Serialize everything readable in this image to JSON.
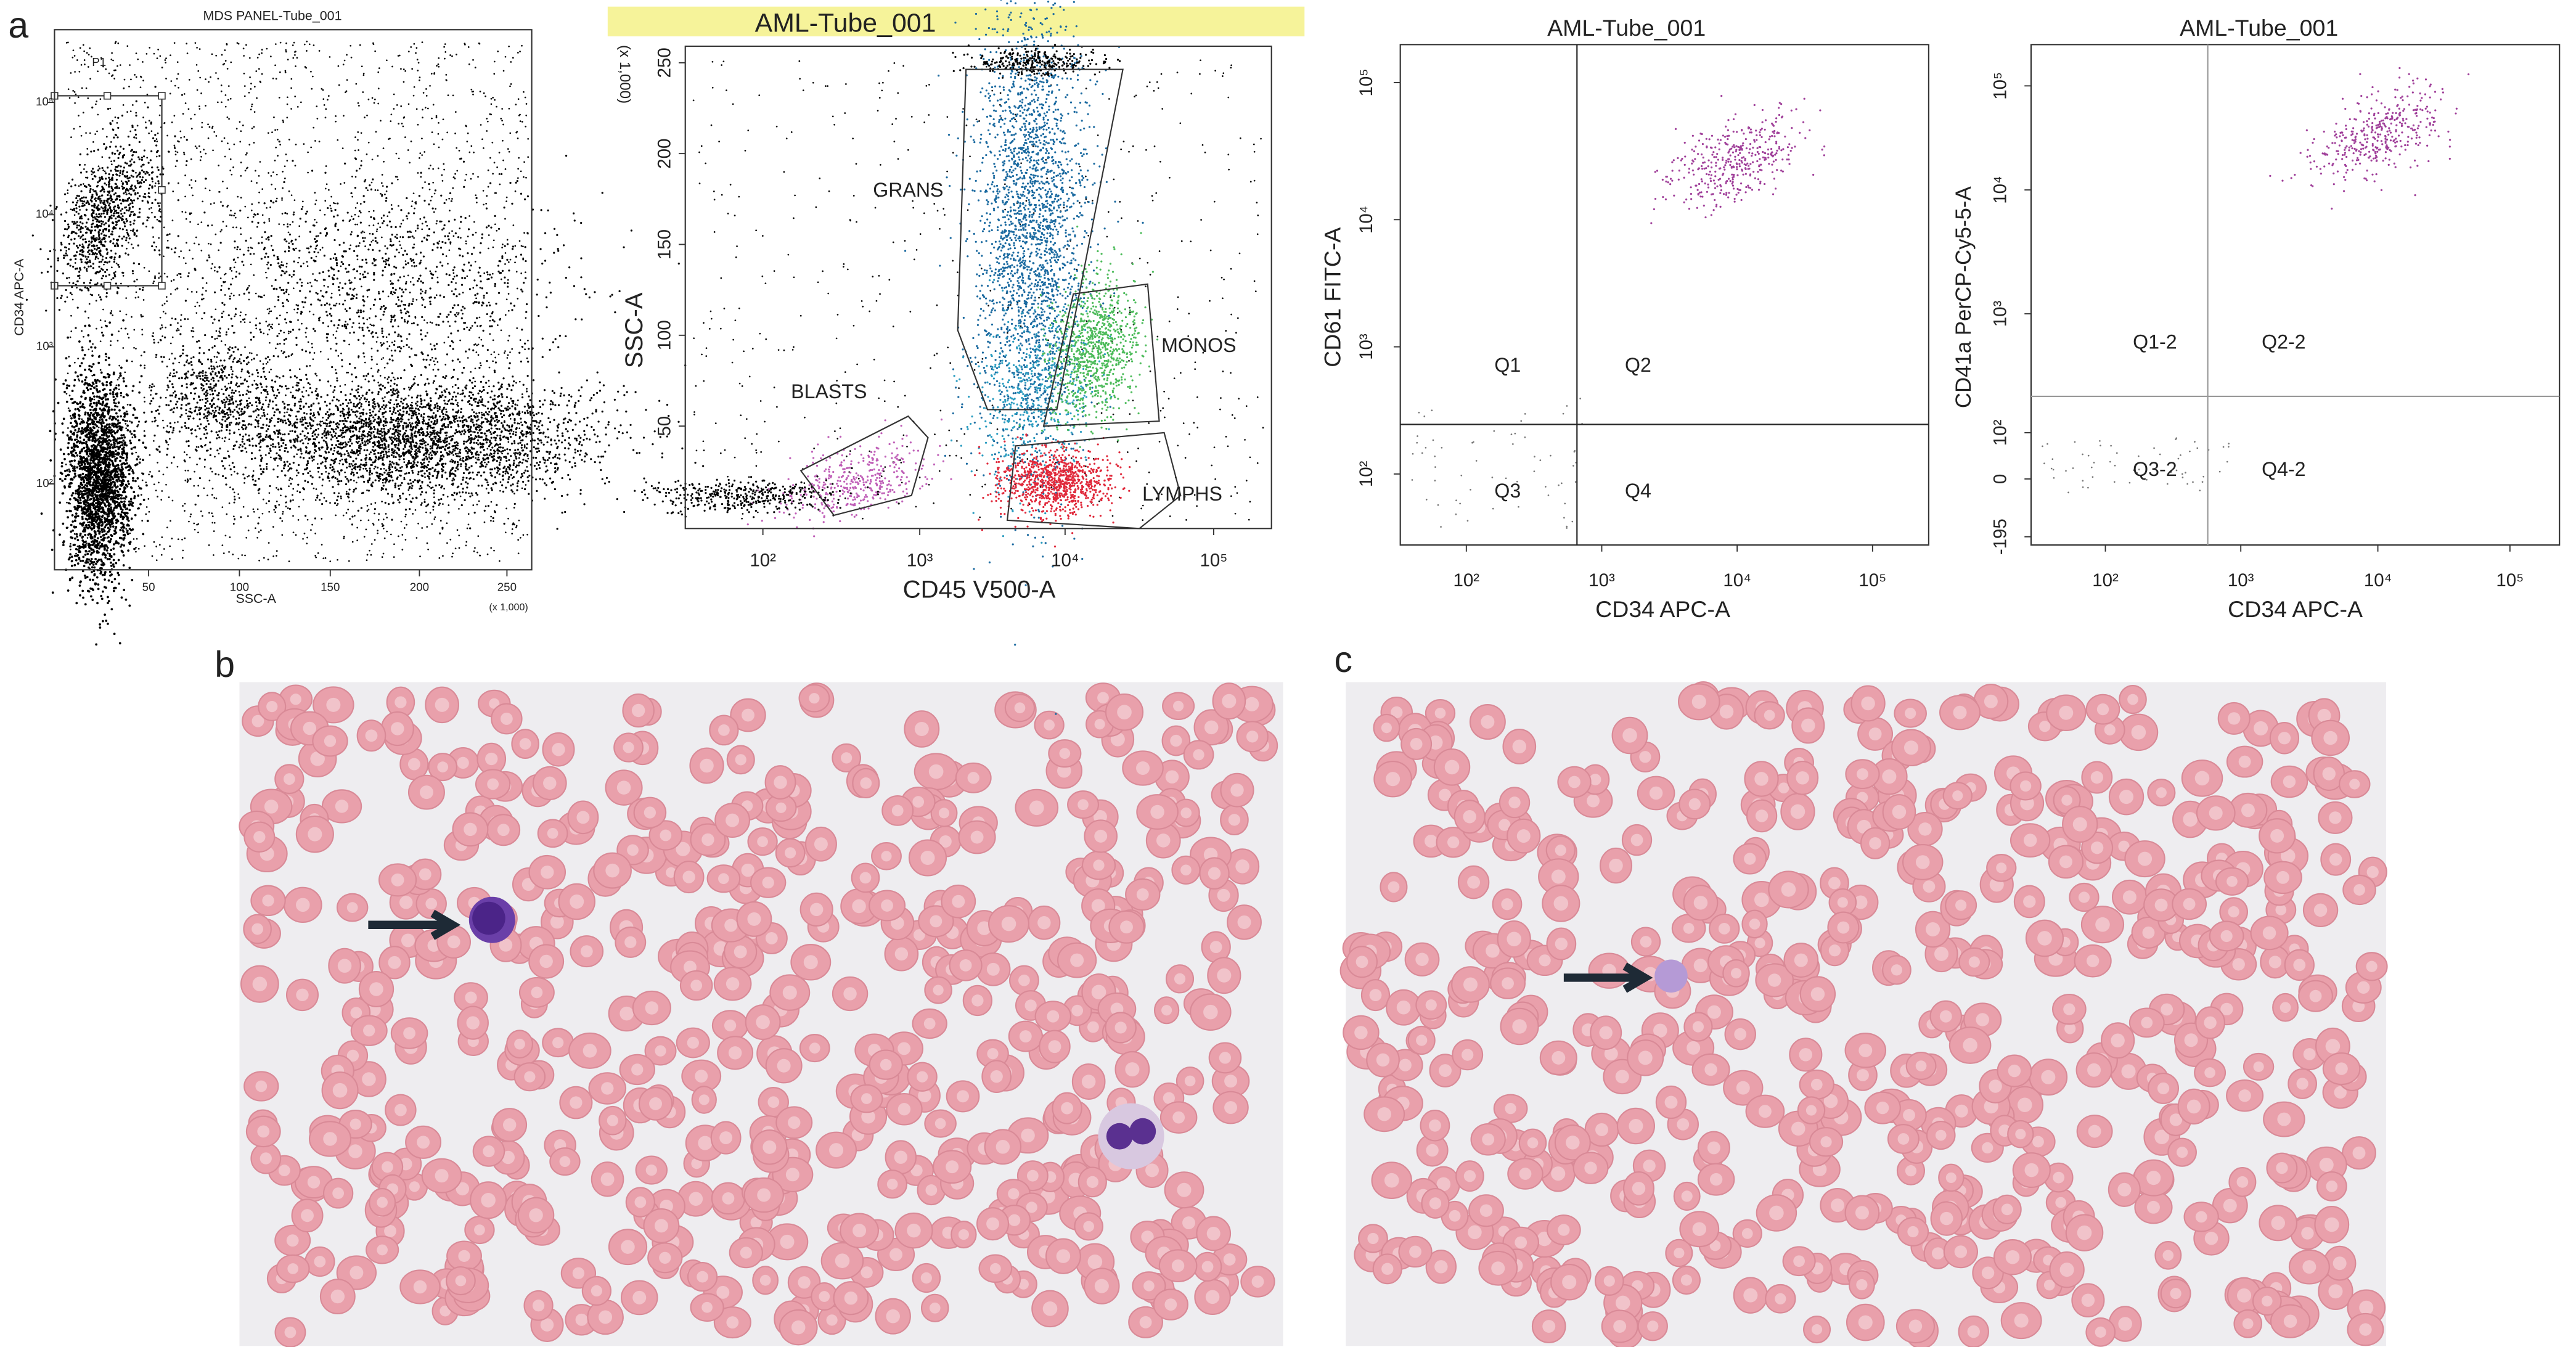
{
  "panel_labels": [
    "a",
    "b",
    "c"
  ],
  "plots": [
    {
      "title": "MDS PANEL-Tube_001",
      "x_label": "SSC-A",
      "y_label": "CD34 APC-A",
      "x_unit": "(x 1,000)",
      "x_ticks": [
        "50",
        "100",
        "150",
        "200",
        "250"
      ],
      "y_ticks": [
        "10⁵",
        "10⁴",
        "10³",
        "10²"
      ],
      "gates": [
        "P1"
      ]
    },
    {
      "title": "AML-Tube_001",
      "x_label": "CD45 V500-A",
      "y_label": "SSC-A",
      "y_unit": "(x 1,000)",
      "x_ticks": [
        "10²",
        "10³",
        "10⁴",
        "10⁵"
      ],
      "y_ticks": [
        "250",
        "200",
        "150",
        "100",
        "50"
      ],
      "gates": [
        "GRANS",
        "MONOS",
        "BLASTS",
        "LYMPHS"
      ]
    },
    {
      "title": "AML-Tube_001",
      "x_label": "CD34 APC-A",
      "y_label": "CD61 FITC-A",
      "x_ticks": [
        "10²",
        "10³",
        "10⁴",
        "10⁵"
      ],
      "y_ticks": [
        "10⁵",
        "10⁴",
        "10³",
        "10²"
      ],
      "gates": [
        "Q1",
        "Q2",
        "Q3",
        "Q4"
      ]
    },
    {
      "title": "AML-Tube_001",
      "x_label": "CD34 APC-A",
      "y_label": "CD41a PerCP-Cy5-5-A",
      "x_ticks": [
        "10²",
        "10³",
        "10⁴",
        "10⁵"
      ],
      "y_ticks": [
        "10⁵",
        "10⁴",
        "10³",
        "10²",
        "0",
        "-195"
      ],
      "gates": [
        "Q1-2",
        "Q2-2",
        "Q3-2",
        "Q4-2"
      ]
    }
  ]
}
